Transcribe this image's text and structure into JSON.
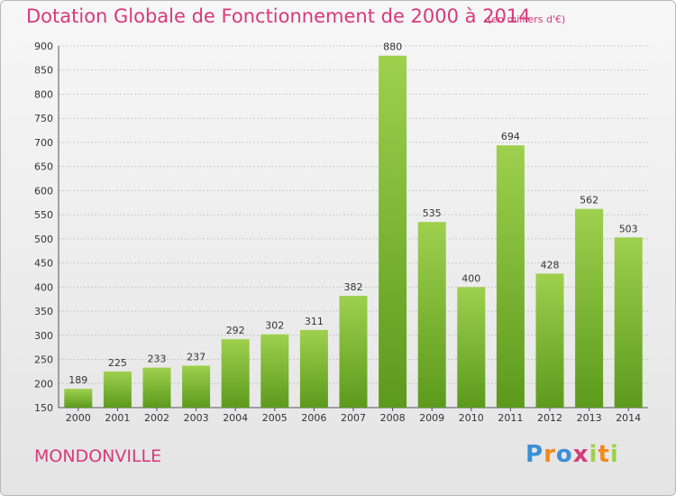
{
  "header": {
    "title": "Dotation Globale de Fonctionnement de 2000 à 2014",
    "subtitle": "(en milliers d'€)"
  },
  "footer": {
    "commune": "MONDONVILLE",
    "logo": [
      "P",
      "r",
      "o",
      "x",
      "i",
      "t",
      "i"
    ]
  },
  "colors": {
    "title": "#d63a7a",
    "bar_top": "#9ed04e",
    "bar_bottom": "#5c9a1c",
    "logo": [
      "#3a8fd6",
      "#f08a1c",
      "#3a8fd6",
      "#d63a7a",
      "#9ed04e",
      "#f08a1c",
      "#9ed04e"
    ]
  },
  "chart_data": {
    "type": "bar",
    "categories": [
      "2000",
      "2001",
      "2002",
      "2003",
      "2004",
      "2005",
      "2006",
      "2007",
      "2008",
      "2009",
      "2010",
      "2011",
      "2012",
      "2013",
      "2014"
    ],
    "values": [
      189,
      225,
      233,
      237,
      292,
      302,
      311,
      382,
      880,
      535,
      400,
      694,
      428,
      562,
      503
    ],
    "ylim": [
      150,
      900
    ],
    "yticks": [
      150,
      200,
      250,
      300,
      350,
      400,
      450,
      500,
      550,
      600,
      650,
      700,
      750,
      800,
      850,
      900
    ],
    "grid": true
  }
}
